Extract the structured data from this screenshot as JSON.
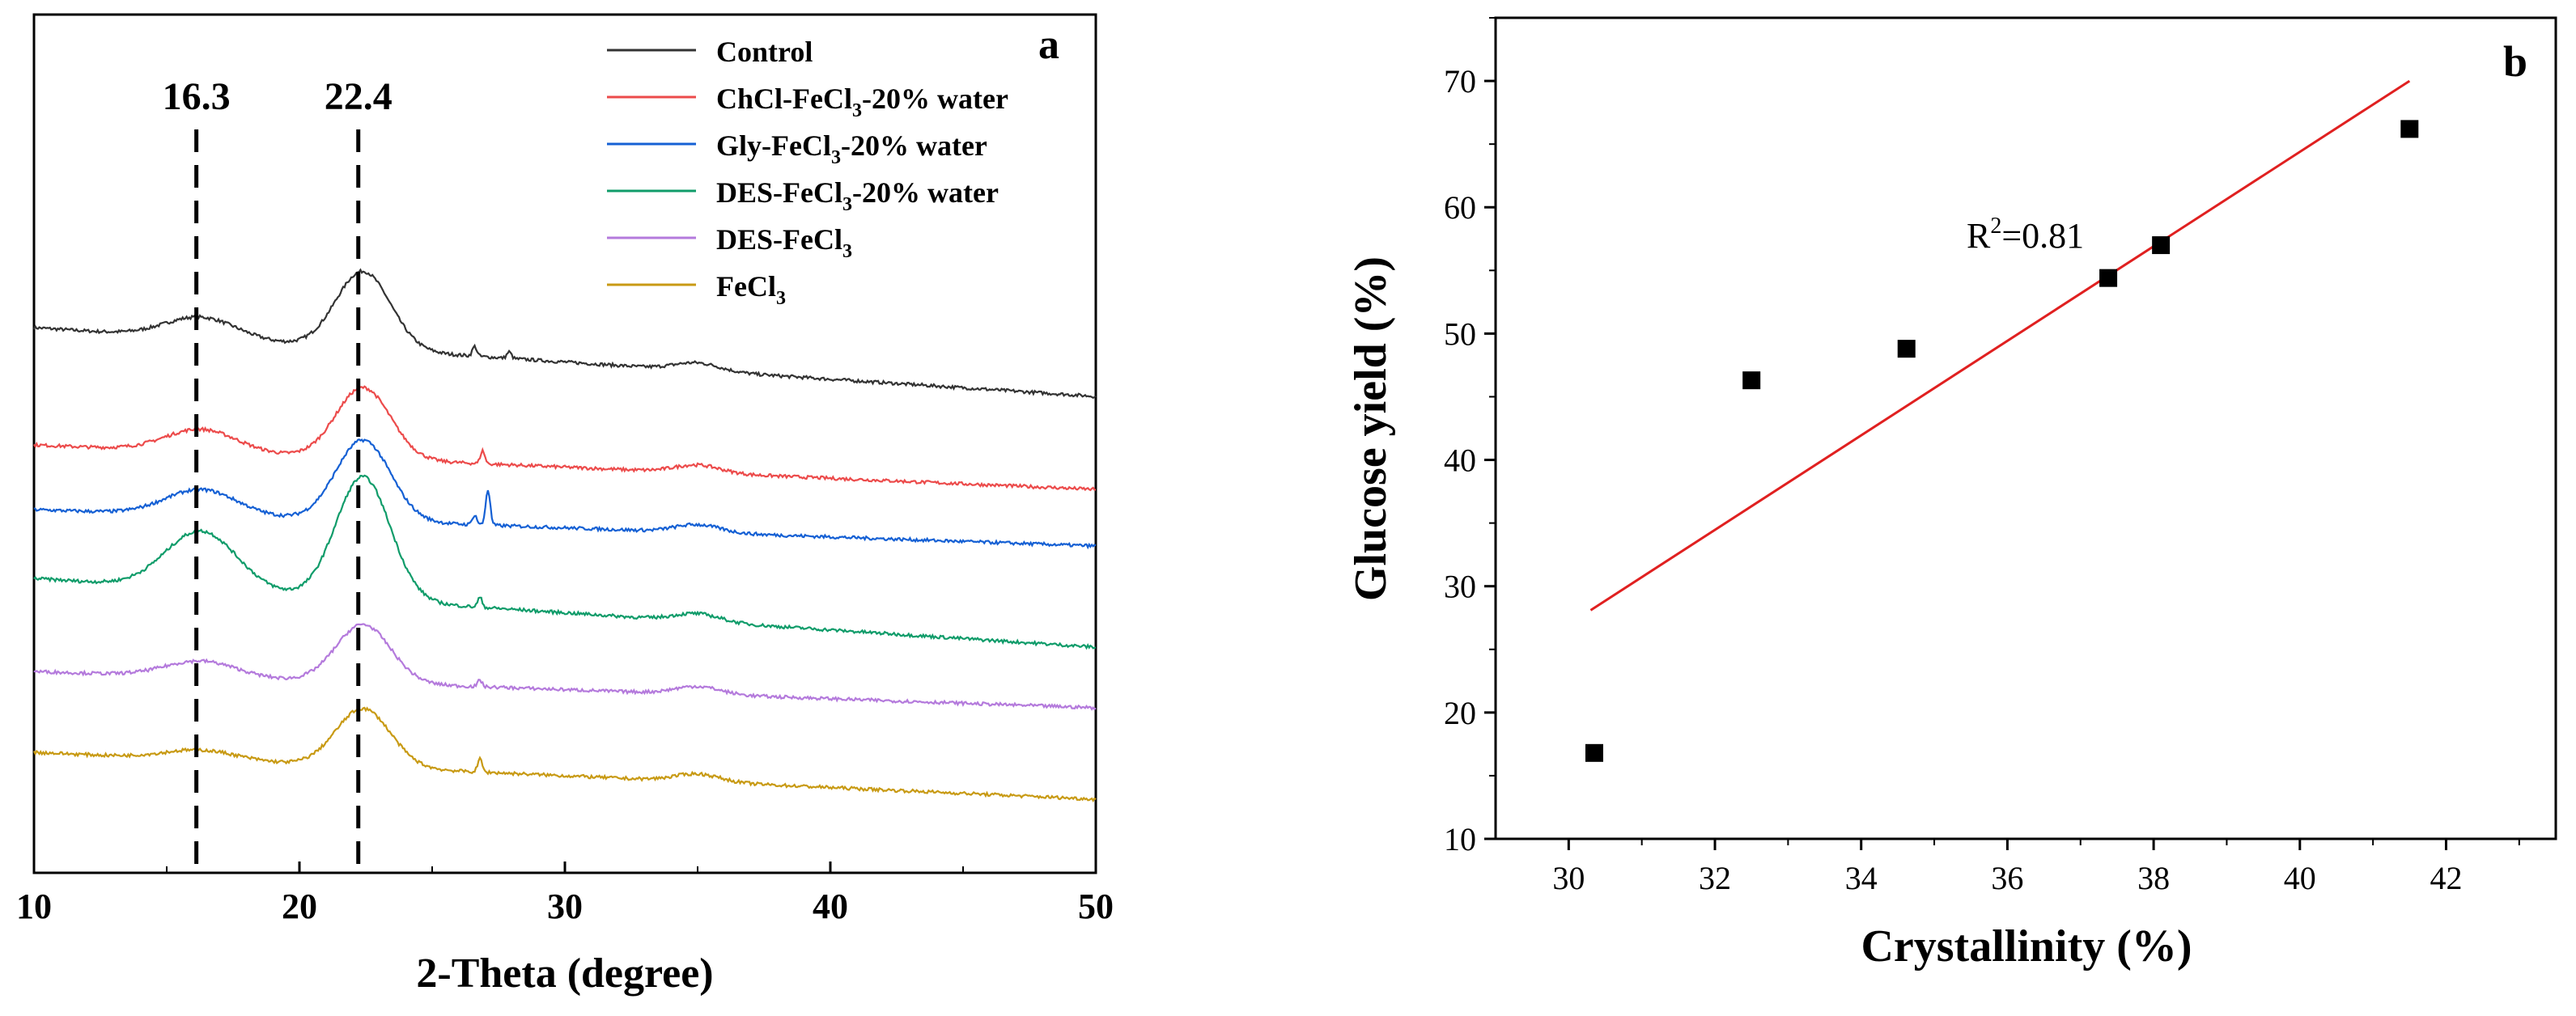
{
  "chart_data": [
    {
      "panel": "a",
      "type": "line",
      "title": "",
      "xlabel": "2-Theta (degree)",
      "ylabel": "",
      "xlim": [
        10,
        50
      ],
      "x_ticks": [
        10,
        20,
        30,
        40,
        50
      ],
      "reference_lines": [
        {
          "x": 16.3,
          "label": "16.3"
        },
        {
          "x": 22.4,
          "label": "22.4"
        }
      ],
      "series": [
        {
          "name": "Control",
          "legend": [
            "Control"
          ],
          "color": "#333333",
          "baseline_start": 0.6,
          "baseline_end": 0.0,
          "amp1": 0.33,
          "amp2": 1.2,
          "sharp_peaks": [
            [
              26.6,
              0.15
            ],
            [
              27.9,
              0.1
            ]
          ]
        },
        {
          "name": "ChCl-FeCl3-20% water",
          "legend": [
            "ChCl-FeCl",
            "3",
            "-20% water"
          ],
          "color": "#ec4b4b",
          "baseline_start": 0.55,
          "baseline_end": 0.0,
          "amp1": 0.35,
          "amp2": 1.1,
          "sharp_peaks": [
            [
              26.9,
              0.2
            ]
          ]
        },
        {
          "name": "Gly-FeCl3-20% water",
          "legend": [
            "Gly-FeCl",
            "3",
            "-20% water"
          ],
          "color": "#1560d4",
          "baseline_start": 0.4,
          "baseline_end": 0.0,
          "amp1": 0.4,
          "amp2": 1.25,
          "sharp_peaks": [
            [
              26.6,
              0.15
            ],
            [
              27.1,
              0.55
            ]
          ]
        },
        {
          "name": "DES-FeCl3-20% water",
          "legend": [
            "DES-FeCl",
            "3",
            "-20% water"
          ],
          "color": "#109c6a",
          "baseline_start": 0.55,
          "baseline_end": 0.0,
          "amp1": 0.9,
          "amp2": 1.9,
          "sharp_peaks": [
            [
              26.8,
              0.15
            ]
          ]
        },
        {
          "name": "DES-FeCl3",
          "legend": [
            "DES-FeCl",
            "3"
          ],
          "color": "#b47adc",
          "baseline_start": 0.3,
          "baseline_end": 0.0,
          "amp1": 0.25,
          "amp2": 0.9,
          "sharp_peaks": [
            [
              26.8,
              0.1
            ]
          ]
        },
        {
          "name": "FeCl3",
          "legend": [
            "FeCl",
            "3"
          ],
          "color": "#c89a14",
          "baseline_start": 0.45,
          "baseline_end": 0.0,
          "amp1": 0.15,
          "amp2": 0.9,
          "sharp_peaks": [
            [
              26.8,
              0.2
            ]
          ]
        }
      ],
      "label": "a"
    },
    {
      "panel": "b",
      "type": "scatter",
      "title": "",
      "xlabel": "Crystallinity (%)",
      "ylabel": "Glucose yield (%)",
      "xlim": [
        29,
        43.5
      ],
      "ylim": [
        10,
        75
      ],
      "x_ticks": [
        30,
        32,
        34,
        36,
        38,
        40,
        42
      ],
      "y_ticks": [
        10,
        20,
        30,
        40,
        50,
        60,
        70
      ],
      "points": [
        {
          "x": 30.35,
          "y": 16.8
        },
        {
          "x": 32.5,
          "y": 46.3
        },
        {
          "x": 34.62,
          "y": 48.8
        },
        {
          "x": 37.38,
          "y": 54.4
        },
        {
          "x": 38.1,
          "y": 57.0
        },
        {
          "x": 41.5,
          "y": 66.2
        }
      ],
      "fit_line": {
        "x": [
          30.3,
          41.5
        ],
        "y": [
          28.1,
          70.0
        ],
        "color": "#e02020"
      },
      "annotation": {
        "text_prefix": "R",
        "superscript": "2",
        "text_suffix": "=0.81"
      },
      "label": "b"
    }
  ]
}
